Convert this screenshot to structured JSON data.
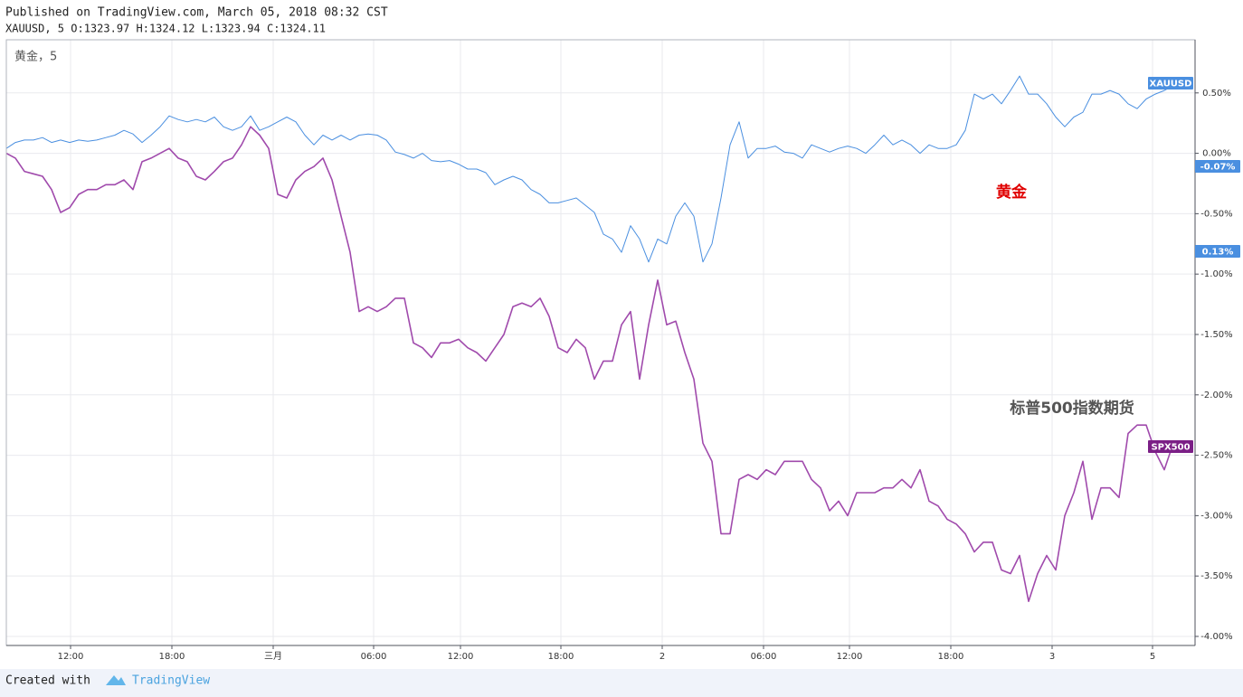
{
  "chart_data": {
    "type": "line",
    "header": "Published on TradingView.com, March 05, 2018 08:32 CST",
    "ohlc": "XAUUSD, 5 O:1323.97 H:1324.12 L:1323.94 C:1324.11",
    "legend_title": "黄金，5",
    "footer_prefix": "Created with",
    "footer_brand": "TradingView",
    "annotations": [
      {
        "text": "黄金",
        "color": "#e00000"
      },
      {
        "text": "标普500指数期货",
        "color": "#555555"
      }
    ],
    "axis_badges": [
      {
        "text": "-0.07%",
        "color": "#4a8fe0"
      },
      {
        "text": "0.13%",
        "color": "#4a8fe0"
      }
    ],
    "grid": true,
    "ylim": [
      -4.075,
      0.94
    ],
    "yticks": [
      {
        "value": 0.5,
        "label": "0.50%"
      },
      {
        "value": 0,
        "label": "0.00%"
      },
      {
        "value": -0.5,
        "label": "-0.50%"
      },
      {
        "value": -1,
        "label": "-1.00%"
      },
      {
        "value": -1.5,
        "label": "-1.50%"
      },
      {
        "value": -2,
        "label": "-2.00%"
      },
      {
        "value": -2.5,
        "label": "-2.50%"
      },
      {
        "value": -3,
        "label": "-3.00%"
      },
      {
        "value": -3.5,
        "label": "-3.50%"
      },
      {
        "value": -4,
        "label": "-4.00%"
      }
    ],
    "xlim": [
      0,
      131.4
    ],
    "xticks": [
      {
        "value": 7.1,
        "label": "12:00"
      },
      {
        "value": 18.3,
        "label": "18:00"
      },
      {
        "value": 29.5,
        "label": "三月"
      },
      {
        "value": 40.6,
        "label": "06:00"
      },
      {
        "value": 50.2,
        "label": "12:00"
      },
      {
        "value": 61.3,
        "label": "18:00"
      },
      {
        "value": 72.5,
        "label": "2"
      },
      {
        "value": 83.7,
        "label": "06:00"
      },
      {
        "value": 93.2,
        "label": "12:00"
      },
      {
        "value": 104.4,
        "label": "18:00"
      },
      {
        "value": 115.6,
        "label": "3"
      },
      {
        "value": 126.7,
        "label": "5"
      }
    ],
    "series": [
      {
        "name": "XAUUSD",
        "color": "#4a8fe0",
        "values": [
          0.04,
          0.09,
          0.11,
          0.11,
          0.13,
          0.09,
          0.11,
          0.09,
          0.11,
          0.1,
          0.11,
          0.13,
          0.15,
          0.19,
          0.16,
          0.09,
          0.15,
          0.22,
          0.31,
          0.28,
          0.26,
          0.28,
          0.26,
          0.3,
          0.22,
          0.19,
          0.22,
          0.31,
          0.19,
          0.22,
          0.26,
          0.3,
          0.26,
          0.15,
          0.07,
          0.15,
          0.11,
          0.15,
          0.11,
          0.15,
          0.16,
          0.15,
          0.11,
          0.01,
          -0.01,
          -0.04,
          0,
          -0.06,
          -0.07,
          -0.06,
          -0.09,
          -0.13,
          -0.13,
          -0.16,
          -0.26,
          -0.22,
          -0.19,
          -0.22,
          -0.3,
          -0.34,
          -0.41,
          -0.41,
          -0.39,
          -0.37,
          -0.43,
          -0.49,
          -0.67,
          -0.71,
          -0.82,
          -0.6,
          -0.71,
          -0.9,
          -0.71,
          -0.75,
          -0.52,
          -0.41,
          -0.52,
          -0.9,
          -0.75,
          -0.37,
          0.07,
          0.26,
          -0.04,
          0.04,
          0.04,
          0.06,
          0.01,
          0,
          -0.04,
          0.07,
          0.04,
          0.01,
          0.04,
          0.06,
          0.04,
          0,
          0.07,
          0.15,
          0.07,
          0.11,
          0.07,
          0,
          0.07,
          0.04,
          0.04,
          0.07,
          0.19,
          0.49,
          0.45,
          0.49,
          0.41,
          0.52,
          0.64,
          0.49,
          0.49,
          0.41,
          0.3,
          0.22,
          0.3,
          0.34,
          0.49,
          0.49,
          0.52,
          0.49,
          0.41,
          0.37,
          0.45,
          0.49,
          0.52,
          0.56
        ]
      },
      {
        "name": "SPX500",
        "color": "#a04aac",
        "values": [
          0,
          -0.04,
          -0.15,
          -0.17,
          -0.19,
          -0.3,
          -0.49,
          -0.45,
          -0.34,
          -0.3,
          -0.3,
          -0.26,
          -0.26,
          -0.22,
          -0.3,
          -0.07,
          -0.04,
          0,
          0.04,
          -0.04,
          -0.07,
          -0.19,
          -0.22,
          -0.15,
          -0.07,
          -0.04,
          0.07,
          0.22,
          0.15,
          0.04,
          -0.34,
          -0.37,
          -0.22,
          -0.15,
          -0.11,
          -0.04,
          -0.22,
          -0.52,
          -0.82,
          -1.31,
          -1.27,
          -1.31,
          -1.27,
          -1.2,
          -1.2,
          -1.57,
          -1.61,
          -1.69,
          -1.57,
          -1.57,
          -1.54,
          -1.61,
          -1.65,
          -1.72,
          -1.61,
          -1.5,
          -1.27,
          -1.24,
          -1.27,
          -1.2,
          -1.35,
          -1.61,
          -1.65,
          -1.54,
          -1.61,
          -1.87,
          -1.72,
          -1.72,
          -1.42,
          -1.31,
          -1.87,
          -1.42,
          -1.05,
          -1.42,
          -1.39,
          -1.65,
          -1.87,
          -2.4,
          -2.55,
          -3.15,
          -3.15,
          -2.7,
          -2.66,
          -2.7,
          -2.62,
          -2.66,
          -2.55,
          -2.55,
          -2.55,
          -2.7,
          -2.77,
          -2.96,
          -2.88,
          -3.0,
          -2.81,
          -2.81,
          -2.81,
          -2.77,
          -2.77,
          -2.7,
          -2.77,
          -2.62,
          -2.88,
          -2.92,
          -3.03,
          -3.07,
          -3.15,
          -3.3,
          -3.22,
          -3.22,
          -3.45,
          -3.48,
          -3.33,
          -3.71,
          -3.48,
          -3.33,
          -3.45,
          -3.0,
          -2.81,
          -2.55,
          -3.03,
          -2.77,
          -2.77,
          -2.85,
          -2.32,
          -2.25,
          -2.25,
          -2.47,
          -2.62,
          -2.4
        ]
      }
    ]
  }
}
